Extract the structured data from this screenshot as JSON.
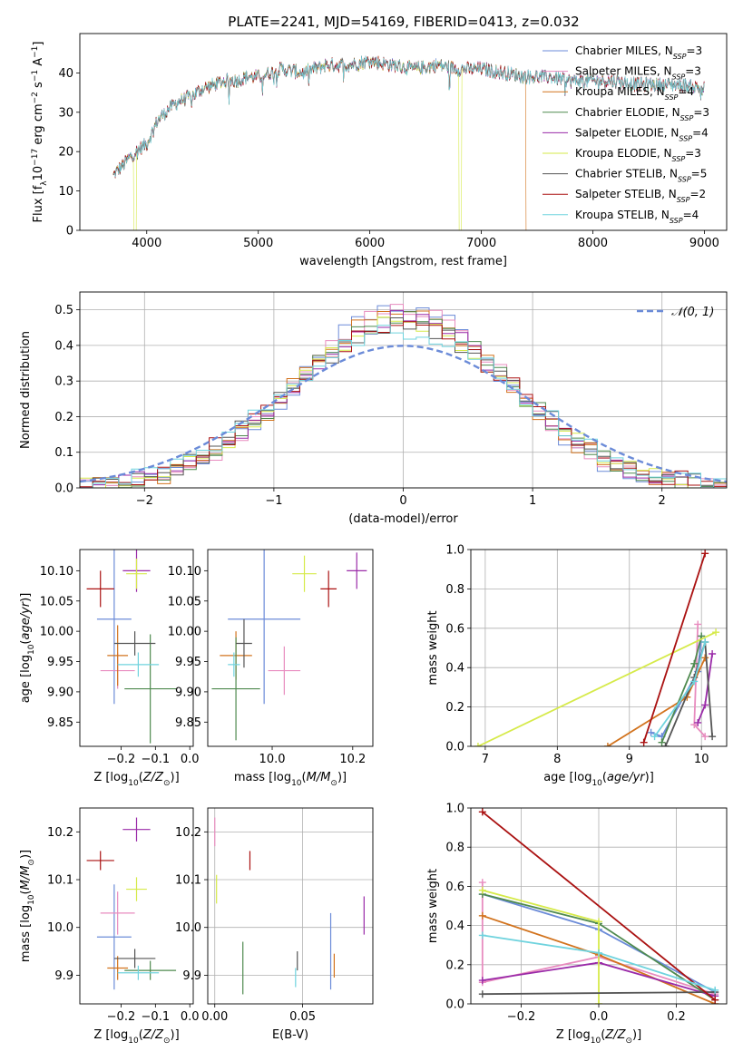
{
  "figure_title": "PLATE=2241, MJD=54169, FIBERID=0413, z=0.032",
  "models": [
    {
      "name": "Chabrier MILES",
      "nssp": "3",
      "color": "#6b8bd8"
    },
    {
      "name": "Salpeter MILES",
      "nssp": "3",
      "color": "#e88cbf"
    },
    {
      "name": "Kroupa MILES",
      "nssp": "4",
      "color": "#d2731e"
    },
    {
      "name": "Chabrier ELODIE",
      "nssp": "3",
      "color": "#4f8a4f"
    },
    {
      "name": "Salpeter ELODIE",
      "nssp": "4",
      "color": "#9a2aa8"
    },
    {
      "name": "Kroupa ELODIE",
      "nssp": "3",
      "color": "#d6ea4a"
    },
    {
      "name": "Chabrier STELIB",
      "nssp": "5",
      "color": "#555555"
    },
    {
      "name": "Salpeter STELIB",
      "nssp": "2",
      "color": "#aa1111"
    },
    {
      "name": "Kroupa STELIB",
      "nssp": "4",
      "color": "#6fd3de"
    }
  ],
  "chart_data": [
    {
      "id": "spectrum",
      "type": "line",
      "xlabel": "wavelength [Angstrom, rest frame]",
      "ylabel": "Flux [f_λ 10^-17 erg cm^-2 s^-1 A^-1]",
      "xlim": [
        3400,
        9200
      ],
      "ylim": [
        0,
        50
      ],
      "xticks": [
        4000,
        5000,
        6000,
        7000,
        8000,
        9000
      ],
      "yticks": [
        0,
        10,
        20,
        30,
        40
      ],
      "grid": false,
      "legend": "top-right",
      "continuum": {
        "x": [
          3700,
          3800,
          3900,
          4000,
          4100,
          4200,
          4300,
          4400,
          4500,
          4600,
          4700,
          4800,
          4900,
          5000,
          5200,
          5400,
          5600,
          5800,
          6000,
          6200,
          6400,
          6600,
          6800,
          7000,
          7200,
          7400,
          7600,
          7800,
          8000,
          8200,
          8400,
          8600,
          8800,
          9000
        ],
        "y": [
          14,
          17,
          20,
          22,
          28,
          31,
          33,
          34,
          36,
          37,
          38,
          38,
          39,
          39,
          41,
          40,
          42,
          42,
          43,
          42,
          41,
          42,
          41,
          41,
          40,
          39,
          39,
          38,
          38,
          38,
          37,
          37,
          37,
          36
        ]
      },
      "dropouts": [
        {
          "model": "Kroupa ELODIE",
          "x": 6800
        },
        {
          "model": "Kroupa MILES",
          "x": 7400
        }
      ]
    },
    {
      "id": "residuals",
      "type": "histogram",
      "xlabel": "(data-model)/error",
      "ylabel": "Normed distribution",
      "xlim": [
        -2.5,
        2.5
      ],
      "ylim": [
        0,
        0.55
      ],
      "xticks": [
        -2,
        -1,
        0,
        1,
        2
      ],
      "yticks": [
        0.0,
        0.1,
        0.2,
        0.3,
        0.4,
        0.5
      ],
      "grid": true,
      "legend": "top-right",
      "reference_curve": "𝒩(0, 1)"
    },
    {
      "id": "age_vs_Z",
      "type": "errorbar",
      "xlabel": "Z [log10(Z/Z⊙)]",
      "ylabel": "age [log10(age/yr)]",
      "xlim": [
        -0.32,
        0.01
      ],
      "ylim": [
        9.81,
        10.135
      ],
      "xticks": [
        -0.2,
        -0.1,
        0.0
      ],
      "yticks": [
        9.85,
        9.9,
        9.95,
        10.0,
        10.05,
        10.1
      ],
      "grid": false,
      "points": [
        {
          "model": "Chabrier MILES",
          "x": -0.22,
          "y": 10.02,
          "xerr": 0.05,
          "yerr": 0.14
        },
        {
          "model": "Salpeter MILES",
          "x": -0.21,
          "y": 9.935,
          "xerr": 0.05,
          "yerr": 0.03
        },
        {
          "model": "Kroupa MILES",
          "x": -0.21,
          "y": 9.96,
          "xerr": 0.03,
          "yerr": 0.05
        },
        {
          "model": "Chabrier ELODIE",
          "x": -0.115,
          "y": 9.905,
          "xerr": 0.075,
          "yerr": 0.09
        },
        {
          "model": "Salpeter ELODIE",
          "x": -0.155,
          "y": 10.1,
          "xerr": 0.04,
          "yerr": 0.035
        },
        {
          "model": "Kroupa ELODIE",
          "x": -0.155,
          "y": 10.095,
          "xerr": 0.03,
          "yerr": 0.025
        },
        {
          "model": "Chabrier STELIB",
          "x": -0.16,
          "y": 9.98,
          "xerr": 0.06,
          "yerr": 0.02
        },
        {
          "model": "Salpeter STELIB",
          "x": -0.26,
          "y": 10.07,
          "xerr": 0.04,
          "yerr": 0.03
        },
        {
          "model": "Kroupa STELIB",
          "x": -0.15,
          "y": 9.945,
          "xerr": 0.06,
          "yerr": 0.02
        }
      ]
    },
    {
      "id": "age_vs_mass",
      "type": "errorbar",
      "xlabel": "mass [log10(M/M⊙)]",
      "ylabel": "",
      "xlim": [
        9.84,
        10.25
      ],
      "ylim": [
        9.81,
        10.135
      ],
      "xticks": [
        9.8,
        10.0,
        10.2
      ],
      "yticks": [
        9.85,
        9.9,
        9.95,
        10.0,
        10.05,
        10.1
      ],
      "grid": false,
      "points": [
        {
          "model": "Chabrier MILES",
          "x": 9.98,
          "y": 10.02,
          "xerr": 0.09,
          "yerr": 0.14
        },
        {
          "model": "Salpeter MILES",
          "x": 10.03,
          "y": 9.935,
          "xerr": 0.04,
          "yerr": 0.04
        },
        {
          "model": "Kroupa MILES",
          "x": 9.91,
          "y": 9.96,
          "xerr": 0.04,
          "yerr": 0.04
        },
        {
          "model": "Chabrier ELODIE",
          "x": 9.91,
          "y": 9.905,
          "xerr": 0.06,
          "yerr": 0.085
        },
        {
          "model": "Salpeter ELODIE",
          "x": 10.21,
          "y": 10.1,
          "xerr": 0.025,
          "yerr": 0.03
        },
        {
          "model": "Kroupa ELODIE",
          "x": 10.08,
          "y": 10.095,
          "xerr": 0.03,
          "yerr": 0.03
        },
        {
          "model": "Chabrier STELIB",
          "x": 9.93,
          "y": 9.98,
          "xerr": 0.02,
          "yerr": 0.04
        },
        {
          "model": "Salpeter STELIB",
          "x": 10.14,
          "y": 10.07,
          "xerr": 0.02,
          "yerr": 0.03
        },
        {
          "model": "Kroupa STELIB",
          "x": 9.905,
          "y": 9.945,
          "xerr": 0.015,
          "yerr": 0.02
        }
      ]
    },
    {
      "id": "weight_vs_age",
      "type": "line",
      "xlabel": "age [log10(age/yr)]",
      "ylabel": "mass weight",
      "xlim": [
        6.8,
        10.35
      ],
      "ylim": [
        0,
        1
      ],
      "xticks": [
        7,
        8,
        9,
        10
      ],
      "yticks": [
        0.0,
        0.2,
        0.4,
        0.6,
        0.8,
        1.0
      ],
      "grid": true,
      "series": [
        {
          "model": "Chabrier MILES",
          "x": [
            9.3,
            9.45,
            9.95,
            10.0
          ],
          "y": [
            0.07,
            0.05,
            0.38,
            0.56
          ]
        },
        {
          "model": "Salpeter MILES",
          "x": [
            9.95,
            9.9,
            10.05
          ],
          "y": [
            0.62,
            0.11,
            0.05
          ]
        },
        {
          "model": "Kroupa MILES",
          "x": [
            8.7,
            9.8,
            10.05
          ],
          "y": [
            0.0,
            0.25,
            0.45
          ]
        },
        {
          "model": "Chabrier ELODIE",
          "x": [
            9.45,
            9.9,
            10.0
          ],
          "y": [
            0.02,
            0.42,
            0.56
          ]
        },
        {
          "model": "Salpeter ELODIE",
          "x": [
            9.95,
            10.05,
            10.15
          ],
          "y": [
            0.12,
            0.21,
            0.47
          ]
        },
        {
          "model": "Kroupa ELODIE",
          "x": [
            6.9,
            10.2
          ],
          "y": [
            0.0,
            0.58
          ]
        },
        {
          "model": "Chabrier STELIB",
          "x": [
            9.5,
            9.9,
            10.05,
            10.15
          ],
          "y": [
            0.0,
            0.35,
            0.53,
            0.05
          ]
        },
        {
          "model": "Salpeter STELIB",
          "x": [
            9.2,
            10.05
          ],
          "y": [
            0.02,
            0.98
          ]
        },
        {
          "model": "Kroupa STELIB",
          "x": [
            9.35,
            9.9,
            10.05
          ],
          "y": [
            0.05,
            0.33,
            0.53
          ]
        }
      ]
    },
    {
      "id": "mass_vs_Z",
      "type": "errorbar",
      "xlabel": "Z [log10(Z/Z⊙)]",
      "ylabel": "mass [log10(M/M⊙)]",
      "xlim": [
        -0.32,
        0.01
      ],
      "ylim": [
        9.84,
        10.25
      ],
      "xticks": [
        -0.2,
        -0.1,
        0.0
      ],
      "yticks": [
        9.9,
        10.0,
        10.1,
        10.2
      ],
      "grid": false,
      "points": [
        {
          "model": "Chabrier MILES",
          "x": -0.22,
          "y": 9.98,
          "xerr": 0.05,
          "yerr": 0.11
        },
        {
          "model": "Salpeter MILES",
          "x": -0.21,
          "y": 10.03,
          "xerr": 0.05,
          "yerr": 0.045
        },
        {
          "model": "Kroupa MILES",
          "x": -0.21,
          "y": 9.915,
          "xerr": 0.03,
          "yerr": 0.025
        },
        {
          "model": "Chabrier ELODIE",
          "x": -0.115,
          "y": 9.91,
          "xerr": 0.075,
          "yerr": 0.02
        },
        {
          "model": "Salpeter ELODIE",
          "x": -0.155,
          "y": 10.205,
          "xerr": 0.04,
          "yerr": 0.025
        },
        {
          "model": "Kroupa ELODIE",
          "x": -0.155,
          "y": 10.08,
          "xerr": 0.03,
          "yerr": 0.025
        },
        {
          "model": "Chabrier STELIB",
          "x": -0.16,
          "y": 9.935,
          "xerr": 0.06,
          "yerr": 0.02
        },
        {
          "model": "Salpeter STELIB",
          "x": -0.26,
          "y": 10.14,
          "xerr": 0.04,
          "yerr": 0.02
        },
        {
          "model": "Kroupa STELIB",
          "x": -0.15,
          "y": 9.905,
          "xerr": 0.06,
          "yerr": 0.015
        }
      ]
    },
    {
      "id": "mass_vs_ebv",
      "type": "errorbar",
      "xlabel": "E(B-V)",
      "ylabel": "",
      "xlim": [
        -0.004,
        0.09
      ],
      "ylim": [
        9.84,
        10.25
      ],
      "xticks": [
        0.0,
        0.05
      ],
      "yticks": [
        9.9,
        10.0,
        10.1,
        10.2
      ],
      "grid": true,
      "points": [
        {
          "model": "Chabrier MILES",
          "x": 0.066,
          "y": 9.95,
          "xerr": 0.0,
          "yerr": 0.08
        },
        {
          "model": "Salpeter MILES",
          "x": 0.0,
          "y": 10.2,
          "xerr": 0.0,
          "yerr": 0.03
        },
        {
          "model": "Kroupa MILES",
          "x": 0.068,
          "y": 9.92,
          "xerr": 0.0,
          "yerr": 0.025
        },
        {
          "model": "Chabrier ELODIE",
          "x": 0.016,
          "y": 9.915,
          "xerr": 0.0,
          "yerr": 0.055
        },
        {
          "model": "Salpeter ELODIE",
          "x": 0.085,
          "y": 10.025,
          "xerr": 0.0,
          "yerr": 0.04
        },
        {
          "model": "Kroupa ELODIE",
          "x": 0.001,
          "y": 10.08,
          "xerr": 0.0,
          "yerr": 0.03
        },
        {
          "model": "Chabrier STELIB",
          "x": 0.047,
          "y": 9.93,
          "xerr": 0.0,
          "yerr": 0.02
        },
        {
          "model": "Salpeter STELIB",
          "x": 0.02,
          "y": 10.14,
          "xerr": 0.0,
          "yerr": 0.02
        },
        {
          "model": "Kroupa STELIB",
          "x": 0.046,
          "y": 9.895,
          "xerr": 0.0,
          "yerr": 0.02
        }
      ]
    },
    {
      "id": "weight_vs_Z",
      "type": "line",
      "xlabel": "Z [log10(Z/Z⊙)]",
      "ylabel": "mass weight",
      "xlim": [
        -0.33,
        0.33
      ],
      "ylim": [
        0,
        1
      ],
      "xticks": [
        -0.2,
        0.0,
        0.2
      ],
      "yticks": [
        0.0,
        0.2,
        0.4,
        0.6,
        0.8,
        1.0
      ],
      "grid": true,
      "series": [
        {
          "model": "Chabrier MILES",
          "x": [
            -0.3,
            0.0,
            0.3
          ],
          "y": [
            0.56,
            0.38,
            0.06
          ]
        },
        {
          "model": "Salpeter MILES",
          "x": [
            -0.3,
            -0.3,
            0.0,
            0.3
          ],
          "y": [
            0.62,
            0.11,
            0.24,
            0.05
          ]
        },
        {
          "model": "Kroupa MILES",
          "x": [
            -0.3,
            0.0,
            0.3
          ],
          "y": [
            0.45,
            0.25,
            0.0
          ]
        },
        {
          "model": "Chabrier ELODIE",
          "x": [
            -0.3,
            0.0,
            0.3
          ],
          "y": [
            0.56,
            0.41,
            0.02
          ]
        },
        {
          "model": "Salpeter ELODIE",
          "x": [
            -0.3,
            0.0,
            0.3
          ],
          "y": [
            0.12,
            0.21,
            0.04
          ]
        },
        {
          "model": "Kroupa ELODIE",
          "x": [
            -0.3,
            0.0,
            0.0
          ],
          "y": [
            0.58,
            0.42,
            0.0
          ]
        },
        {
          "model": "Chabrier STELIB",
          "x": [
            -0.3,
            0.3
          ],
          "y": [
            0.05,
            0.06
          ]
        },
        {
          "model": "Salpeter STELIB",
          "x": [
            -0.3,
            0.3
          ],
          "y": [
            0.98,
            0.02
          ]
        },
        {
          "model": "Kroupa STELIB",
          "x": [
            -0.3,
            0.0,
            0.3
          ],
          "y": [
            0.35,
            0.26,
            0.07
          ]
        }
      ]
    }
  ]
}
